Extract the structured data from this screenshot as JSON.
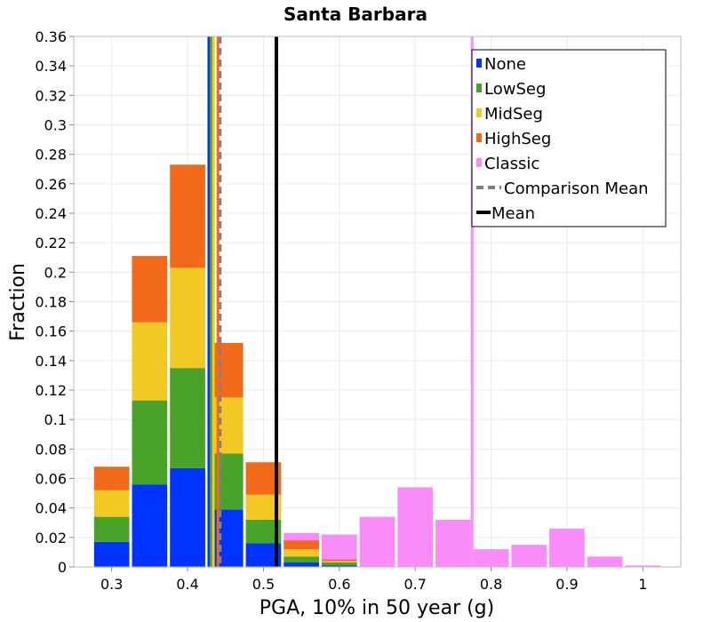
{
  "chart_data": {
    "type": "bar",
    "stacked": true,
    "title": "Santa Barbara",
    "xlabel": "PGA, 10% in 50 year (g)",
    "ylabel": "Fraction",
    "xlim": [
      0.25,
      1.05
    ],
    "ylim": [
      0,
      0.36
    ],
    "bin_width": 0.05,
    "grid": true,
    "legend_position": "top-right",
    "x_ticks": [
      0.3,
      0.4,
      0.5,
      0.6,
      0.7,
      0.8,
      0.9,
      1.0
    ],
    "x_tick_labels": [
      "0.3",
      "0.4",
      "0.5",
      "0.6",
      "0.7",
      "0.8",
      "0.9",
      "1"
    ],
    "y_ticks": [
      0,
      0.02,
      0.04,
      0.06,
      0.08,
      0.1,
      0.12,
      0.14,
      0.16,
      0.18,
      0.2,
      0.22,
      0.24,
      0.26,
      0.28,
      0.3,
      0.32,
      0.34,
      0.36
    ],
    "y_tick_labels": [
      "0",
      "0.02",
      "0.04",
      "0.06",
      "0.08",
      "0.1",
      "0.12",
      "0.14",
      "0.16",
      "0.18",
      "0.2",
      "0.22",
      "0.24",
      "0.26",
      "0.28",
      "0.3",
      "0.32",
      "0.34",
      "0.36"
    ],
    "stacked_bins": {
      "centers": [
        0.3,
        0.35,
        0.4,
        0.45,
        0.5,
        0.55,
        0.6
      ],
      "series": [
        {
          "name": "None",
          "color": "#0033ff",
          "values": [
            0.017,
            0.056,
            0.067,
            0.039,
            0.016,
            0.003,
            0.001
          ]
        },
        {
          "name": "LowSeg",
          "color": "#4aa329",
          "values": [
            0.017,
            0.057,
            0.068,
            0.038,
            0.016,
            0.004,
            0.002
          ]
        },
        {
          "name": "MidSeg",
          "color": "#f2c924",
          "values": [
            0.018,
            0.053,
            0.068,
            0.038,
            0.017,
            0.005,
            0.001
          ]
        },
        {
          "name": "HighSeg",
          "color": "#f26a19",
          "values": [
            0.016,
            0.045,
            0.07,
            0.037,
            0.022,
            0.006,
            0.001
          ]
        }
      ]
    },
    "classic_bins": {
      "name": "Classic",
      "color": "#fa8cfa",
      "centers": [
        0.3,
        0.35,
        0.4,
        0.45,
        0.5,
        0.55,
        0.6,
        0.65,
        0.7,
        0.75,
        0.8,
        0.85,
        0.9,
        0.95,
        1.0
      ],
      "values": [
        0.0,
        0.0,
        0.0,
        0.0,
        0.0,
        0.023,
        0.022,
        0.034,
        0.054,
        0.032,
        0.012,
        0.015,
        0.026,
        0.007,
        0.001
      ]
    },
    "lines": [
      {
        "name": "None mean",
        "x": 0.428,
        "color": "#0033ff",
        "style": "solid"
      },
      {
        "name": "LowSeg mean",
        "x": 0.431,
        "color": "#4aa329",
        "style": "solid"
      },
      {
        "name": "MidSeg mean",
        "x": 0.434,
        "color": "#f2c924",
        "style": "solid"
      },
      {
        "name": "HighSeg mean",
        "x": 0.44,
        "color": "#f26a19",
        "style": "solid"
      },
      {
        "name": "Classic mean",
        "x": 0.775,
        "color": "#fa8cfa",
        "style": "solid"
      },
      {
        "name": "Comparison Mean",
        "x": 0.443,
        "color": "#808080",
        "style": "dashed"
      },
      {
        "name": "Mean",
        "x": 0.517,
        "color": "#000000",
        "style": "solid"
      }
    ],
    "legend": [
      {
        "label": "None",
        "color": "#0033ff",
        "kind": "box"
      },
      {
        "label": "LowSeg",
        "color": "#4aa329",
        "kind": "box"
      },
      {
        "label": "MidSeg",
        "color": "#f2c924",
        "kind": "box"
      },
      {
        "label": "HighSeg",
        "color": "#f26a19",
        "kind": "box"
      },
      {
        "label": "Classic",
        "color": "#fa8cfa",
        "kind": "box"
      },
      {
        "label": "Comparison Mean",
        "color": "#808080",
        "kind": "dashed"
      },
      {
        "label": "Mean",
        "color": "#000000",
        "kind": "line"
      }
    ]
  }
}
